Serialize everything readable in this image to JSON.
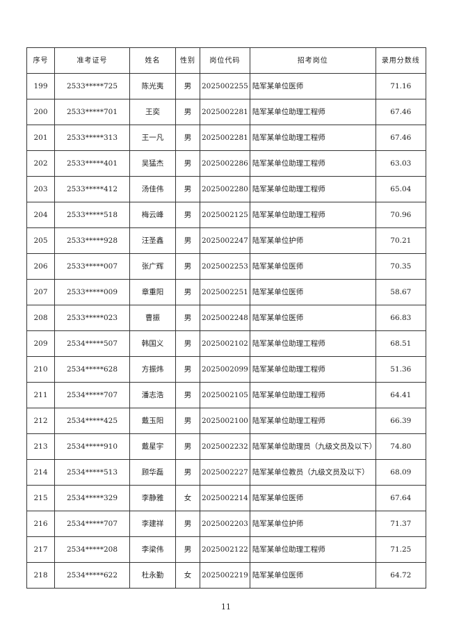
{
  "table": {
    "headers": [
      "序号",
      "准考证号",
      "姓名",
      "性别",
      "岗位代码",
      "招考岗位",
      "录用分数线"
    ],
    "rows": [
      [
        "199",
        "2533*****725",
        "陈光夷",
        "男",
        "2025002255",
        "陆军某单位医师",
        "71.16"
      ],
      [
        "200",
        "2533*****701",
        "王奕",
        "男",
        "2025002281",
        "陆军某单位助理工程师",
        "67.46"
      ],
      [
        "201",
        "2533*****313",
        "王一凡",
        "男",
        "2025002281",
        "陆军某单位助理工程师",
        "67.46"
      ],
      [
        "202",
        "2533*****401",
        "吴猛杰",
        "男",
        "2025002286",
        "陆军某单位助理工程师",
        "63.03"
      ],
      [
        "203",
        "2533*****412",
        "汤佳伟",
        "男",
        "2025002280",
        "陆军某单位助理工程师",
        "65.04"
      ],
      [
        "204",
        "2533*****518",
        "梅云峰",
        "男",
        "2025002125",
        "陆军某单位助理工程师",
        "70.96"
      ],
      [
        "205",
        "2533*****928",
        "汪圣鑫",
        "男",
        "2025002247",
        "陆军某单位护师",
        "70.21"
      ],
      [
        "206",
        "2533*****007",
        "张广辉",
        "男",
        "2025002253",
        "陆军某单位医师",
        "70.35"
      ],
      [
        "207",
        "2533*****009",
        "章重阳",
        "男",
        "2025002251",
        "陆军某单位医师",
        "58.67"
      ],
      [
        "208",
        "2533*****023",
        "曹振",
        "男",
        "2025002248",
        "陆军某单位医师",
        "66.83"
      ],
      [
        "209",
        "2534*****507",
        "韩国义",
        "男",
        "2025002102",
        "陆军某单位助理工程师",
        "68.51"
      ],
      [
        "210",
        "2534*****628",
        "方振炜",
        "男",
        "2025002099",
        "陆军某单位助理工程师",
        "51.36"
      ],
      [
        "211",
        "2534*****707",
        "潘志浩",
        "男",
        "2025002105",
        "陆军某单位助理工程师",
        "64.41"
      ],
      [
        "212",
        "2534*****425",
        "戴玉阳",
        "男",
        "2025002100",
        "陆军某单位助理工程师",
        "66.39"
      ],
      [
        "213",
        "2534*****910",
        "戴星宇",
        "男",
        "2025002232",
        "陆军某单位助理员（九级文员及以下）",
        "74.80"
      ],
      [
        "214",
        "2534*****513",
        "顾华磊",
        "男",
        "2025002227",
        "陆军某单位教员（九级文员及以下）",
        "68.09"
      ],
      [
        "215",
        "2534*****329",
        "李静雅",
        "女",
        "2025002214",
        "陆军某单位医师",
        "67.64"
      ],
      [
        "216",
        "2534*****707",
        "李建祥",
        "男",
        "2025002203",
        "陆军某单位护师",
        "71.37"
      ],
      [
        "217",
        "2534*****208",
        "李梁伟",
        "男",
        "2025002122",
        "陆军某单位助理工程师",
        "71.25"
      ],
      [
        "218",
        "2534*****622",
        "杜永勤",
        "女",
        "2025002219",
        "陆军某单位医师",
        "64.72"
      ]
    ]
  },
  "page_number": "11"
}
